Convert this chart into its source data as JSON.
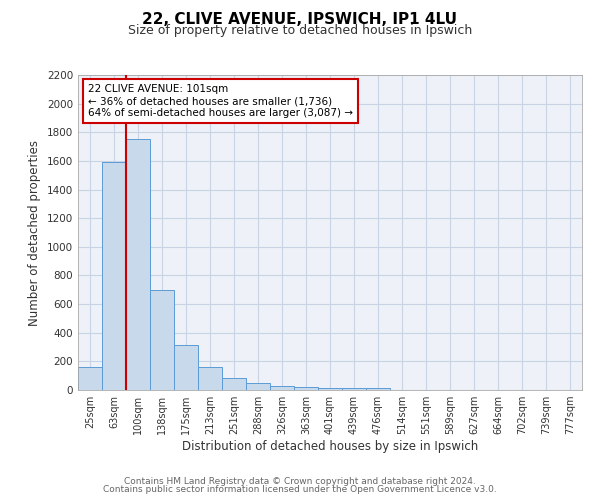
{
  "title": "22, CLIVE AVENUE, IPSWICH, IP1 4LU",
  "subtitle": "Size of property relative to detached houses in Ipswich",
  "xlabel": "Distribution of detached houses by size in Ipswich",
  "ylabel": "Number of detached properties",
  "bar_labels": [
    "25sqm",
    "63sqm",
    "100sqm",
    "138sqm",
    "175sqm",
    "213sqm",
    "251sqm",
    "288sqm",
    "326sqm",
    "363sqm",
    "401sqm",
    "439sqm",
    "476sqm",
    "514sqm",
    "551sqm",
    "589sqm",
    "627sqm",
    "664sqm",
    "702sqm",
    "739sqm",
    "777sqm"
  ],
  "bar_values": [
    160,
    1590,
    1750,
    700,
    315,
    160,
    85,
    50,
    25,
    20,
    15,
    15,
    15,
    0,
    0,
    0,
    0,
    0,
    0,
    0,
    0
  ],
  "bar_color": "#c9d9ec",
  "bar_edge_color": "#5b9bd5",
  "red_line_color": "#cc0000",
  "ylim": [
    0,
    2200
  ],
  "yticks": [
    0,
    200,
    400,
    600,
    800,
    1000,
    1200,
    1400,
    1600,
    1800,
    2000,
    2200
  ],
  "annotation_title": "22 CLIVE AVENUE: 101sqm",
  "annotation_line1": "← 36% of detached houses are smaller (1,736)",
  "annotation_line2": "64% of semi-detached houses are larger (3,087) →",
  "annotation_box_color": "#ffffff",
  "annotation_box_edge": "#cc0000",
  "grid_color": "#c8d4e3",
  "bg_color": "#eef2f8",
  "footer1": "Contains HM Land Registry data © Crown copyright and database right 2024.",
  "footer2": "Contains public sector information licensed under the Open Government Licence v3.0."
}
